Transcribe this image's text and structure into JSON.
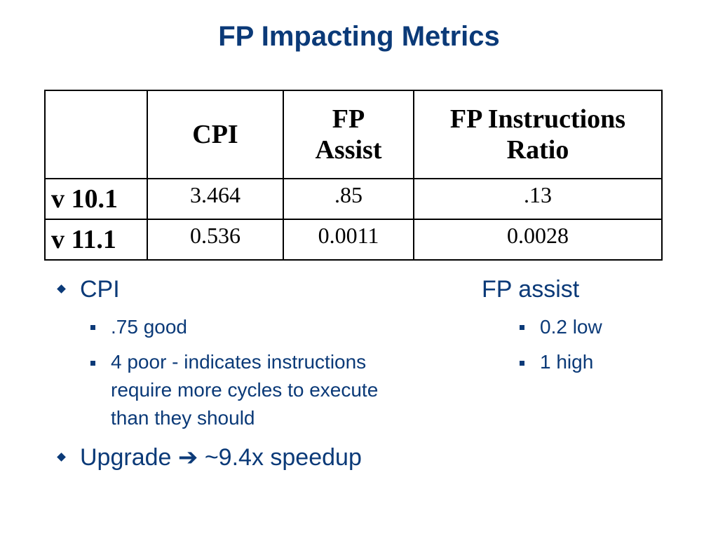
{
  "slide": {
    "title": "FP Impacting Metrics"
  },
  "table": {
    "headers": [
      "",
      "CPI",
      "FP Assist",
      "FP Instructions Ratio"
    ],
    "header_lines": {
      "fp_assist_line1": "FP",
      "fp_assist_line2": "Assist",
      "ratio_line1": "FP Instructions",
      "ratio_line2": "Ratio"
    },
    "rows": [
      {
        "label": "v 10.1",
        "cpi": "3.464",
        "fp_assist": ".85",
        "fp_ratio": ".13"
      },
      {
        "label": "v 11.1",
        "cpi": "0.536",
        "fp_assist": "0.0011",
        "fp_ratio": "0.0028"
      }
    ]
  },
  "left_list": {
    "cpi": {
      "label": "CPI",
      "subitems": [
        ".75 good",
        "4 poor - indicates instructions",
        "require more cycles to execute",
        "than they should"
      ]
    },
    "upgrade": {
      "label": "Upgrade",
      "arrow": "➔",
      "result": "~9.4x speedup"
    }
  },
  "right_list": {
    "label": "FP assist",
    "subitems": [
      "0.2 low",
      "1 high"
    ]
  },
  "colors": {
    "title": "#0b3a78",
    "bullets": "#0b3a78",
    "table_text": "#000000"
  }
}
